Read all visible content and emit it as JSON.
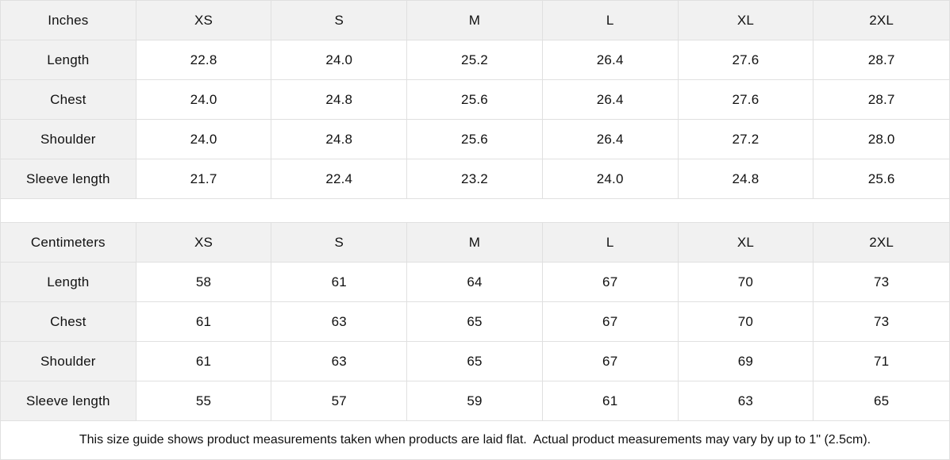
{
  "colors": {
    "header_bg": "#f1f1f1",
    "border": "#e0e0e0",
    "text": "#111111",
    "background": "#ffffff"
  },
  "tables": [
    {
      "unit_label": "Inches",
      "columns": [
        "XS",
        "S",
        "M",
        "L",
        "XL",
        "2XL"
      ],
      "rows": [
        {
          "label": "Length",
          "values": [
            "22.8",
            "24.0",
            "25.2",
            "26.4",
            "27.6",
            "28.7"
          ]
        },
        {
          "label": "Chest",
          "values": [
            "24.0",
            "24.8",
            "25.6",
            "26.4",
            "27.6",
            "28.7"
          ]
        },
        {
          "label": "Shoulder",
          "values": [
            "24.0",
            "24.8",
            "25.6",
            "26.4",
            "27.2",
            "28.0"
          ]
        },
        {
          "label": "Sleeve length",
          "values": [
            "21.7",
            "22.4",
            "23.2",
            "24.0",
            "24.8",
            "25.6"
          ]
        }
      ]
    },
    {
      "unit_label": "Centimeters",
      "columns": [
        "XS",
        "S",
        "M",
        "L",
        "XL",
        "2XL"
      ],
      "rows": [
        {
          "label": "Length",
          "values": [
            "58",
            "61",
            "64",
            "67",
            "70",
            "73"
          ]
        },
        {
          "label": "Chest",
          "values": [
            "61",
            "63",
            "65",
            "67",
            "70",
            "73"
          ]
        },
        {
          "label": "Shoulder",
          "values": [
            "61",
            "63",
            "65",
            "67",
            "69",
            "71"
          ]
        },
        {
          "label": "Sleeve length",
          "values": [
            "55",
            "57",
            "59",
            "61",
            "63",
            "65"
          ]
        }
      ]
    }
  ],
  "note": "This size guide shows product measurements taken when products are laid flat.  Actual product measurements may vary by up to 1\" (2.5cm)."
}
